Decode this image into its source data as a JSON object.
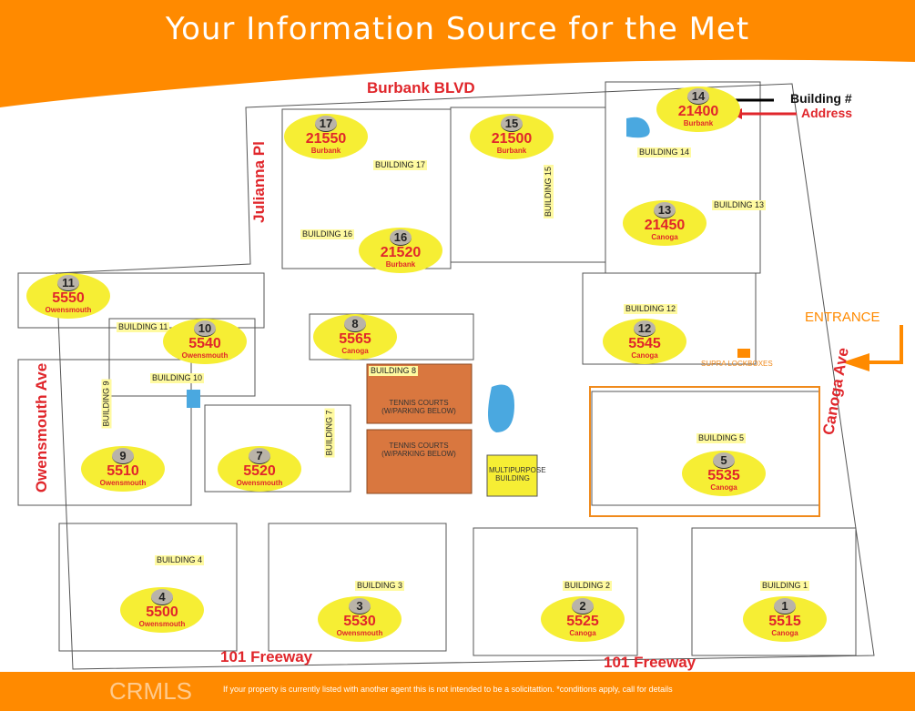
{
  "title": "Your Information Source for the Met",
  "colors": {
    "brand_orange": "#ff8a00",
    "address_red": "#e0262b",
    "marker_yellow": "#f6ee34",
    "tennis": "#d9773f",
    "pool": "#4aa8e0"
  },
  "streets": {
    "burbank": "Burbank BLVD",
    "julianna": "Julianna Pl",
    "owensmouth": "Owensmouth Ave",
    "canoga": "Canoga Ave",
    "freeway_left": "101 Freeway",
    "freeway_right": "101 Freeway"
  },
  "legend": {
    "building": "Building #",
    "address": "Address"
  },
  "entrance": "ENTRANCE",
  "lockboxes": "SUPRA LOCKBOXES",
  "amenities": {
    "tennis1": "TENNIS COURTS (W/PARKING BELOW)",
    "tennis2": "TENNIS COURTS (W/PARKING BELOW)",
    "multipurpose": "MULTIPURPOSE BUILDING",
    "building8": "BUILDING 8"
  },
  "buildings": [
    {
      "num": "17",
      "address": "21550",
      "street": "Burbank",
      "label": "BUILDING 17"
    },
    {
      "num": "15",
      "address": "21500",
      "street": "Burbank",
      "label": "BUILDING 15"
    },
    {
      "num": "14",
      "address": "21400",
      "street": "Burbank",
      "label": "BUILDING 14"
    },
    {
      "num": "16",
      "address": "21520",
      "street": "Burbank",
      "label": "BUILDING 16"
    },
    {
      "num": "13",
      "address": "21450",
      "street": "Canoga",
      "label": "BUILDING 13"
    },
    {
      "num": "11",
      "address": "5550",
      "street": "Owensmouth",
      "label": "BUILDING 11"
    },
    {
      "num": "10",
      "address": "5540",
      "street": "Owensmouth",
      "label": "BUILDING 10"
    },
    {
      "num": "8",
      "address": "5565",
      "street": "Canoga",
      "label": ""
    },
    {
      "num": "12",
      "address": "5545",
      "street": "Canoga",
      "label": "BUILDING 12"
    },
    {
      "num": "9",
      "address": "5510",
      "street": "Owensmouth",
      "label": "BUILDING 9"
    },
    {
      "num": "7",
      "address": "5520",
      "street": "Owensmouth",
      "label": "BUILDING 7"
    },
    {
      "num": "5",
      "address": "5535",
      "street": "Canoga",
      "label": "BUILDING 5"
    },
    {
      "num": "4",
      "address": "5500",
      "street": "Owensmouth",
      "label": "BUILDING 4"
    },
    {
      "num": "3",
      "address": "5530",
      "street": "Owensmouth",
      "label": "BUILDING 3"
    },
    {
      "num": "2",
      "address": "5525",
      "street": "Canoga",
      "label": "BUILDING 2"
    },
    {
      "num": "1",
      "address": "5515",
      "street": "Canoga",
      "label": "BUILDING 1"
    }
  ],
  "footer": {
    "disclaimer": "If your property is currently listed with another agent this is not intended to be a solicitattion. *conditions apply, call for details",
    "watermark": "CRMLS"
  }
}
